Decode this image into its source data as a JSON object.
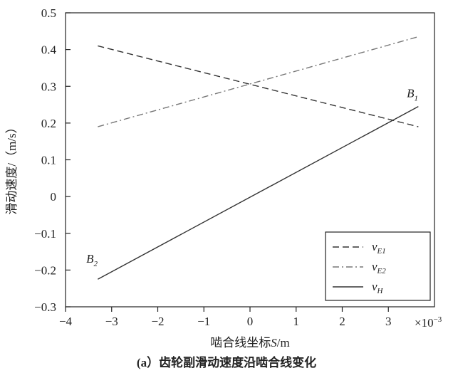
{
  "chart_data": {
    "type": "line",
    "xlabel": "啮合线坐标",
    "xlabel_var": "S",
    "xlabel_unit": "/m",
    "x_exponent_label": "×10",
    "x_exponent_power": "−3",
    "ylabel": "滑动速度/（m/s）",
    "caption": "(a）齿轮副滑动速度沿啮合线变化",
    "xlim": [
      -4,
      4
    ],
    "ylim": [
      -0.3,
      0.5
    ],
    "x_ticks": [
      -4,
      -3,
      -2,
      -1,
      0,
      1,
      2,
      3
    ],
    "x_tick_labels": [
      "−4",
      "−3",
      "−2",
      "−1",
      "0",
      "1",
      "2",
      "3"
    ],
    "y_ticks": [
      -0.3,
      -0.2,
      -0.1,
      0,
      0.1,
      0.2,
      0.3,
      0.4,
      0.5
    ],
    "y_tick_labels": [
      "−0.3",
      "−0.2",
      "−0.1",
      "0",
      "0.1",
      "0.2",
      "0.3",
      "0.4",
      "0.5"
    ],
    "series": [
      {
        "name": "v",
        "sub": "E1",
        "style": "dashed",
        "x": [
          -3.3,
          3.65
        ],
        "y": [
          0.41,
          0.19
        ]
      },
      {
        "name": "v",
        "sub": "E2",
        "style": "dashdot",
        "x": [
          -3.3,
          3.65
        ],
        "y": [
          0.19,
          0.435
        ]
      },
      {
        "name": "v",
        "sub": "H",
        "style": "solid",
        "x": [
          -3.3,
          3.65
        ],
        "y": [
          -0.225,
          0.245
        ]
      }
    ],
    "annotations": [
      {
        "main": "B",
        "sub": "1",
        "x": 3.4,
        "y": 0.27
      },
      {
        "main": "B",
        "sub": "2",
        "x": -3.55,
        "y": -0.18
      }
    ],
    "legend_position": "bottom-right"
  }
}
